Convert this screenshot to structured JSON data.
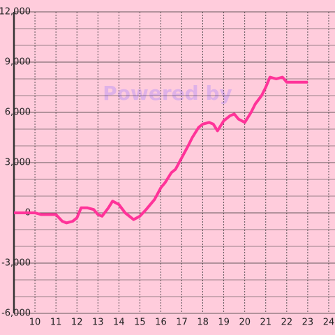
{
  "chart_data": {
    "type": "line",
    "watermark": "Powered by",
    "x": [
      9,
      9.5,
      10,
      10.3,
      10.6,
      11,
      11.3,
      11.5,
      11.8,
      12,
      12.2,
      12.5,
      12.8,
      13,
      13.2,
      13.5,
      13.7,
      14,
      14.3,
      14.7,
      15,
      15.3,
      15.7,
      16,
      16.2,
      16.5,
      16.7,
      17,
      17.3,
      17.5,
      17.8,
      18,
      18.3,
      18.5,
      18.7,
      19,
      19.3,
      19.5,
      19.7,
      20,
      20.3,
      20.5,
      20.8,
      21,
      21.2,
      21.5,
      21.8,
      22,
      22.5,
      23
    ],
    "series": [
      {
        "color": "#ff3399",
        "values": [
          0,
          0,
          0,
          -100,
          -100,
          -100,
          -500,
          -600,
          -500,
          -300,
          300,
          300,
          200,
          -100,
          -200,
          300,
          700,
          500,
          0,
          -400,
          -200,
          200,
          800,
          1500,
          1800,
          2400,
          2600,
          3300,
          4000,
          4500,
          5100,
          5300,
          5400,
          5300,
          4900,
          5500,
          5800,
          5900,
          5600,
          5400,
          6000,
          6500,
          7000,
          7500,
          8100,
          8000,
          8100,
          7800,
          7800,
          7800
        ]
      }
    ],
    "xlim": [
      9,
      24.3
    ],
    "xticks": [
      10,
      11,
      12,
      13,
      14,
      15,
      16,
      17,
      18,
      19,
      20,
      21,
      22,
      23,
      24
    ],
    "ylim": [
      -6000,
      12000
    ],
    "yticks": [
      {
        "value": 12000,
        "label": "12,000"
      },
      {
        "value": 9000,
        "label": "9,000"
      },
      {
        "value": 6000,
        "label": "6,000"
      },
      {
        "value": 3000,
        "label": "3,000"
      },
      0,
      {
        "value": -3000,
        "label": "-3,000"
      },
      {
        "value": -6000,
        "label": "-6,000"
      }
    ],
    "y_minor_ticks": [
      -5000,
      -4000,
      -2000,
      -1000,
      1000,
      2000,
      4000,
      5000,
      7000,
      8000,
      10000,
      11000
    ],
    "grid": true
  }
}
